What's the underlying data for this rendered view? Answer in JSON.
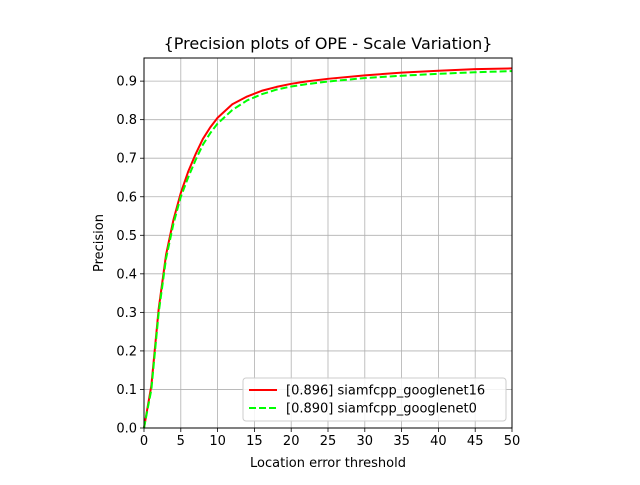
{
  "chart_data": {
    "type": "line",
    "title": "{Precision plots of OPE - Scale Variation}",
    "xlabel": "Location error threshold",
    "ylabel": "Precision",
    "xlim": [
      0,
      50
    ],
    "ylim": [
      0,
      0.96
    ],
    "xticks": [
      0,
      5,
      10,
      15,
      20,
      25,
      30,
      35,
      40,
      45,
      50
    ],
    "yticks": [
      0.0,
      0.1,
      0.2,
      0.3,
      0.4,
      0.5,
      0.6,
      0.7,
      0.8,
      0.9
    ],
    "xtick_labels": [
      "0",
      "5",
      "10",
      "15",
      "20",
      "25",
      "30",
      "35",
      "40",
      "45",
      "50"
    ],
    "ytick_labels": [
      "0.0",
      "0.1",
      "0.2",
      "0.3",
      "0.4",
      "0.5",
      "0.6",
      "0.7",
      "0.8",
      "0.9"
    ],
    "grid": true,
    "legend_position": "lower-right",
    "series": [
      {
        "name": "[0.896] siamfcpp_googlenet16",
        "color": "#ff0000",
        "dash": "solid",
        "x": [
          0,
          1,
          2,
          3,
          4,
          5,
          6,
          7,
          8,
          9,
          10,
          12,
          14,
          16,
          18,
          20,
          22,
          25,
          30,
          35,
          40,
          45,
          50
        ],
        "y": [
          0.0,
          0.11,
          0.31,
          0.45,
          0.54,
          0.61,
          0.665,
          0.71,
          0.75,
          0.78,
          0.805,
          0.84,
          0.86,
          0.875,
          0.885,
          0.893,
          0.899,
          0.906,
          0.915,
          0.922,
          0.927,
          0.931,
          0.933
        ]
      },
      {
        "name": "[0.890] siamfcpp_googlenet0",
        "color": "#00ff00",
        "dash": "dashed",
        "x": [
          0,
          1,
          2,
          3,
          4,
          5,
          6,
          7,
          8,
          9,
          10,
          12,
          14,
          16,
          18,
          20,
          22,
          25,
          30,
          35,
          40,
          45,
          50
        ],
        "y": [
          0.0,
          0.1,
          0.3,
          0.44,
          0.53,
          0.6,
          0.65,
          0.695,
          0.735,
          0.765,
          0.79,
          0.825,
          0.85,
          0.866,
          0.878,
          0.886,
          0.892,
          0.899,
          0.908,
          0.914,
          0.919,
          0.923,
          0.926
        ]
      }
    ]
  }
}
